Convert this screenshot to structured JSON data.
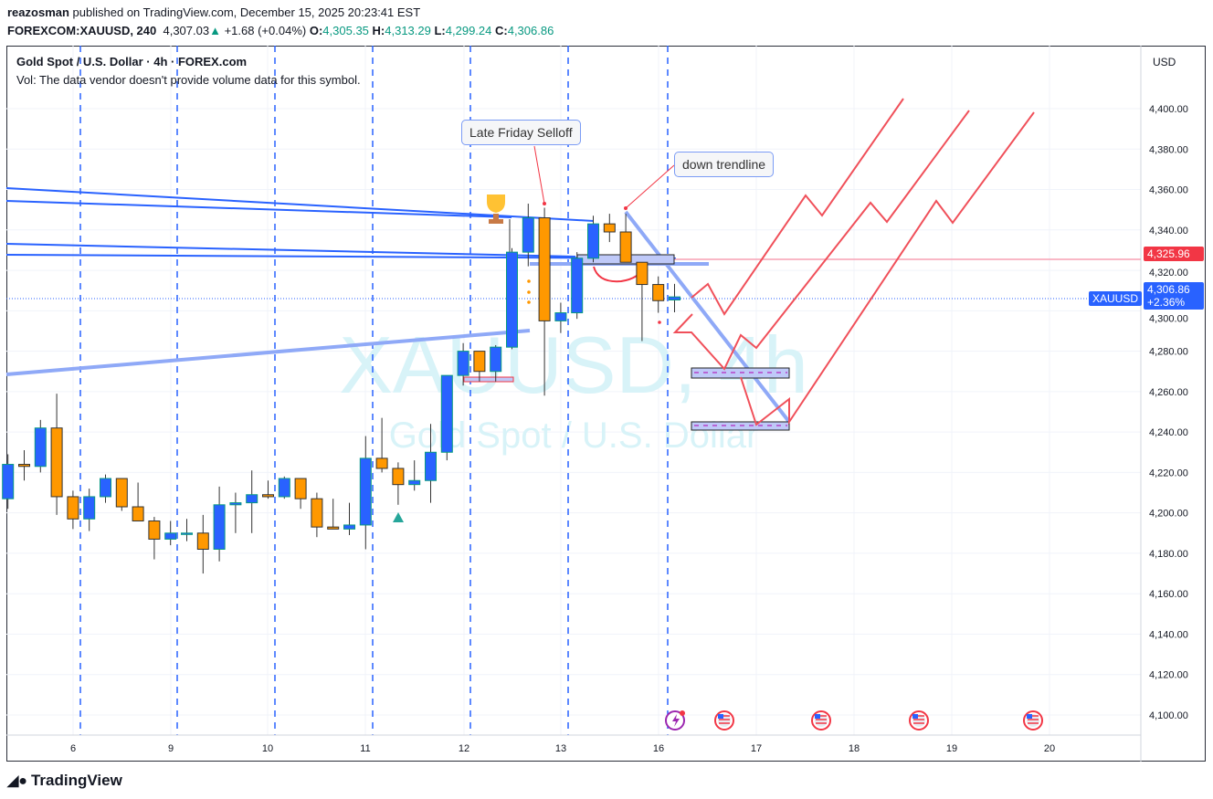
{
  "header": {
    "author": "reazosman",
    "published": "published on TradingView.com, December 15, 2025 20:23:41 EST",
    "symbol": "FOREXCOM:XAUUSD, 240",
    "last": "4,307.03",
    "change": "+1.68 (+0.04%)",
    "o_label": "O:",
    "o": "4,305.35",
    "h_label": "H:",
    "h": "4,313.29",
    "l_label": "L:",
    "l": "4,299.24",
    "c_label": "C:",
    "c": "4,306.86"
  },
  "legend": {
    "title": "Gold Spot / U.S. Dollar · 4h · FOREX.com",
    "volume": "Vol: The data vendor doesn't provide volume data for this symbol."
  },
  "watermark": {
    "line1": "XAUUSD, 4h",
    "line2": "Gold Spot / U.S. Dollar"
  },
  "annotations": {
    "selloff": "Late Friday Selloff",
    "trendline": "down trendline"
  },
  "price_axis": {
    "currency": "USD",
    "alert_price": "4,325.96",
    "last_symbol": "XAUUSD",
    "last_price": "4,306.86",
    "last_change": "+2.36%"
  },
  "footer": {
    "brand": "TradingView"
  },
  "colors": {
    "up": "#2962ff",
    "down": "#ff9800",
    "alert": "#f23645",
    "trend": "#2962ff"
  },
  "chart_data": {
    "type": "candlestick",
    "title": "Gold Spot / U.S. Dollar · 4h",
    "ylim": [
      4090,
      4410
    ],
    "yticks": [
      4100,
      4120,
      4140,
      4160,
      4180,
      4200,
      4220,
      4240,
      4260,
      4280,
      4300,
      4320,
      4340,
      4360,
      4380,
      4400
    ],
    "ytick_labels": [
      "4,100.00",
      "4,120.00",
      "4,140.00",
      "4,160.00",
      "4,180.00",
      "4,200.00",
      "4,220.00",
      "4,240.00",
      "4,260.00",
      "4,280.00",
      "4,300.00",
      "4,320.00",
      "4,340.00",
      "4,360.00",
      "4,380.00",
      "4,400.00"
    ],
    "xtick_labels": [
      "6",
      "9",
      "10",
      "11",
      "12",
      "13",
      "16",
      "17",
      "18",
      "19",
      "20"
    ],
    "candles": [
      [
        4207,
        4224,
        4229,
        4202
      ],
      [
        4224,
        4223,
        4231,
        4216
      ],
      [
        4223,
        4242,
        4246,
        4220
      ],
      [
        4242,
        4208,
        4259,
        4199
      ],
      [
        4208,
        4197,
        4211,
        4192
      ],
      [
        4197,
        4208,
        4212,
        4191
      ],
      [
        4208,
        4217,
        4219,
        4205
      ],
      [
        4217,
        4203,
        4217,
        4201
      ],
      [
        4203,
        4196,
        4215,
        4196
      ],
      [
        4196,
        4187,
        4198,
        4177
      ],
      [
        4187,
        4190,
        4196,
        4184
      ],
      [
        4190,
        4190,
        4197,
        4186
      ],
      [
        4190,
        4182,
        4199,
        4170
      ],
      [
        4182,
        4204,
        4213,
        4176
      ],
      [
        4204,
        4205,
        4210,
        4190
      ],
      [
        4205,
        4209,
        4221,
        4190
      ],
      [
        4209,
        4208,
        4216,
        4207
      ],
      [
        4208,
        4217,
        4218,
        4207
      ],
      [
        4217,
        4207,
        4217,
        4202
      ],
      [
        4207,
        4193,
        4210,
        4188
      ],
      [
        4193,
        4192,
        4207,
        4192
      ],
      [
        4192,
        4194,
        4205,
        4189
      ],
      [
        4194,
        4227,
        4238,
        4182
      ],
      [
        4227,
        4222,
        4247,
        4220
      ],
      [
        4222,
        4214,
        4225,
        4204
      ],
      [
        4214,
        4216,
        4226,
        4211
      ],
      [
        4216,
        4230,
        4244,
        4205
      ],
      [
        4230,
        4268,
        4268,
        4226
      ],
      [
        4268,
        4280,
        4284,
        4263
      ],
      [
        4280,
        4270,
        4280,
        4265
      ],
      [
        4270,
        4282,
        4283,
        4265
      ],
      [
        4282,
        4329,
        4331,
        4281
      ],
      [
        4329,
        4346,
        4353,
        4322
      ],
      [
        4346,
        4295,
        4351,
        4258
      ],
      [
        4295,
        4299,
        4304,
        4289
      ],
      [
        4299,
        4326,
        4329,
        4296
      ],
      [
        4326,
        4343,
        4347,
        4324
      ],
      [
        4343,
        4339,
        4348,
        4334
      ],
      [
        4339,
        4324,
        4348,
        4324
      ],
      [
        4324,
        4313,
        4324,
        4285
      ],
      [
        4313,
        4305,
        4317,
        4299
      ],
      [
        4305.35,
        4306.86,
        4313.29,
        4299.24
      ]
    ]
  }
}
